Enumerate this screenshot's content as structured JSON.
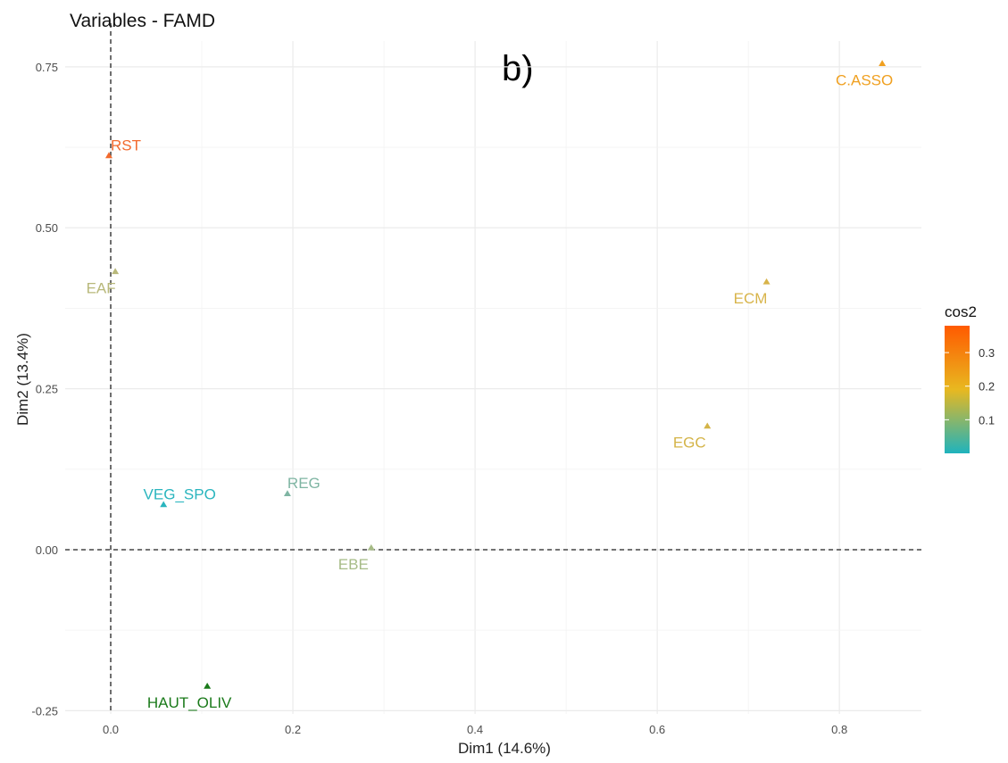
{
  "chart_data": {
    "type": "scatter",
    "title": "Variables - FAMD",
    "panel_label": "b)",
    "xlabel": "Dim1 (14.6%)",
    "ylabel": "Dim2 (13.4%)",
    "xlim": [
      -0.05,
      0.89
    ],
    "ylim": [
      -0.255,
      0.79
    ],
    "x_ticks": [
      0.0,
      0.2,
      0.4,
      0.6,
      0.8
    ],
    "x_tick_labels": [
      "0.0",
      "0.2",
      "0.4",
      "0.6",
      "0.8"
    ],
    "y_ticks": [
      -0.25,
      0.0,
      0.25,
      0.5,
      0.75
    ],
    "y_tick_labels": [
      "-0.25",
      "0.00",
      "0.25",
      "0.50",
      "0.75"
    ],
    "grid": true,
    "reference_lines": {
      "x": 0,
      "y": 0,
      "style": "dashed"
    },
    "points": [
      {
        "label": "C.ASSO",
        "x": 0.847,
        "y": 0.755,
        "color": "#f0a020"
      },
      {
        "label": "RST",
        "x": -0.002,
        "y": 0.612,
        "color": "#f26a2e"
      },
      {
        "label": "EAF",
        "x": 0.005,
        "y": 0.432,
        "color": "#b8b87a"
      },
      {
        "label": "ECM",
        "x": 0.72,
        "y": 0.416,
        "color": "#d8b44a"
      },
      {
        "label": "EGC",
        "x": 0.655,
        "y": 0.192,
        "color": "#d4b448"
      },
      {
        "label": "REG",
        "x": 0.194,
        "y": 0.087,
        "color": "#7fb5a3"
      },
      {
        "label": "VEG_SPO",
        "x": 0.058,
        "y": 0.07,
        "color": "#2ab5be"
      },
      {
        "label": "EBE",
        "x": 0.286,
        "y": 0.003,
        "color": "#a6bb86"
      },
      {
        "label": "HAUT_OLIV",
        "x": 0.106,
        "y": -0.212,
        "color": "#1a7a1a"
      }
    ],
    "legend": {
      "title": "cos2",
      "placement": "right",
      "min": 0.0,
      "max": 0.38,
      "ticks": [
        0.1,
        0.2,
        0.3
      ],
      "tick_labels": [
        "0.1",
        "0.2",
        "0.3"
      ],
      "gradient_colors": [
        "#1fb3bd",
        "#e8b820",
        "#ff5a00"
      ]
    }
  }
}
